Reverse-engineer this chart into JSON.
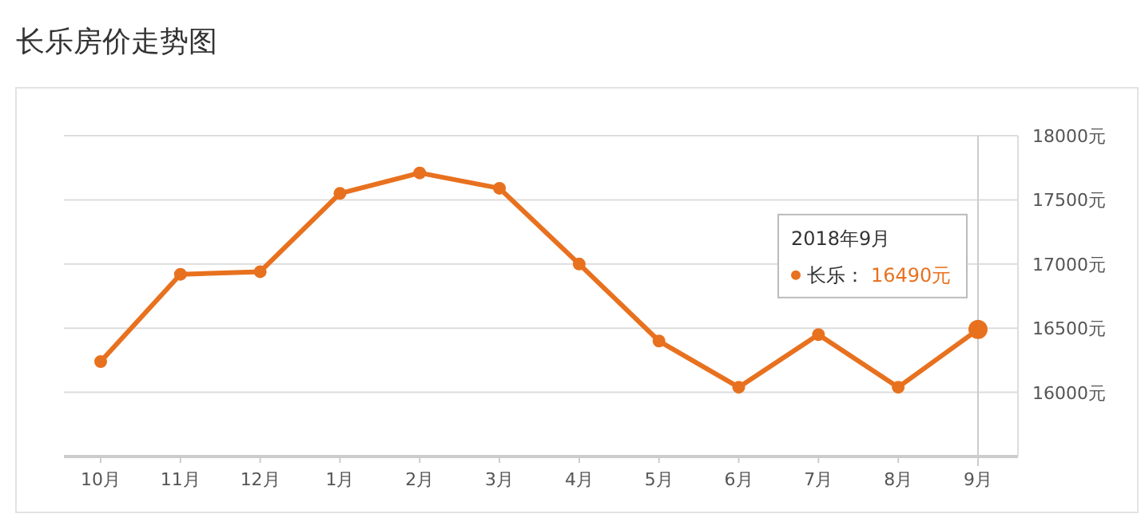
{
  "chart_data": {
    "type": "line",
    "title": "长乐房价走势图",
    "categories": [
      "10月",
      "11月",
      "12月",
      "1月",
      "2月",
      "3月",
      "4月",
      "5月",
      "6月",
      "7月",
      "8月",
      "9月"
    ],
    "series": [
      {
        "name": "长乐：",
        "color": "#e8711f",
        "values": [
          16240,
          16920,
          16940,
          17550,
          17710,
          17590,
          17000,
          16400,
          16040,
          16450,
          16040,
          16490
        ],
        "value_labels": [
          null,
          null,
          null,
          null,
          null,
          null,
          null,
          null,
          null,
          null,
          null,
          "16490元"
        ]
      }
    ],
    "ylim": [
      15500,
      18000
    ],
    "yticks": [
      {
        "value": 16000,
        "label": "16000元"
      },
      {
        "value": 16500,
        "label": "16500元"
      },
      {
        "value": 17000,
        "label": "17000元"
      },
      {
        "value": 17500,
        "label": "17500元"
      },
      {
        "value": 18000,
        "label": "18000元"
      }
    ],
    "grid": "y",
    "marker": "circle",
    "line_style": "solid",
    "legend": "top right",
    "ref_lines": [
      {
        "axis": "x",
        "value": "9月",
        "color": "#cccccc"
      }
    ],
    "annotations": [
      "2018年9月"
    ]
  }
}
